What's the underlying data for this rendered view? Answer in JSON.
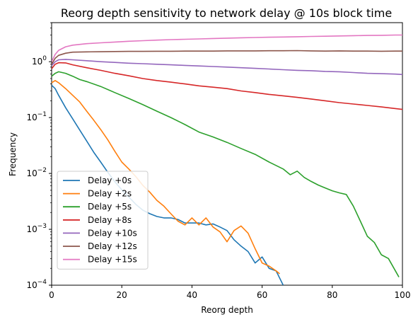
{
  "chart_data": {
    "type": "line",
    "title": "Reorg depth sensitivity to network delay @ 10s block time",
    "xlabel": "Reorg depth",
    "ylabel": "Frequency",
    "xlim": [
      0,
      100
    ],
    "ylim": [
      0.0001,
      5
    ],
    "yscale": "log",
    "grid": false,
    "legend_position": "lower-left",
    "x_ticks": [
      0,
      20,
      40,
      60,
      80,
      100
    ],
    "x_tick_labels": [
      "0",
      "20",
      "40",
      "60",
      "80",
      "100"
    ],
    "y_ticks": [
      0.0001,
      0.001,
      0.01,
      0.1,
      1
    ],
    "y_tick_labels": [
      {
        "base": "10",
        "exp": "−4"
      },
      {
        "base": "10",
        "exp": "−3"
      },
      {
        "base": "10",
        "exp": "−2"
      },
      {
        "base": "10",
        "exp": "−1"
      },
      {
        "base": "10",
        "exp": "0"
      }
    ],
    "series": [
      {
        "name": "Delay +0s",
        "color": "#1f77b4",
        "x": [
          0,
          1,
          2,
          4,
          6,
          8,
          10,
          12,
          14,
          16,
          18,
          20,
          22,
          24,
          26,
          28,
          30,
          32,
          34,
          36,
          38,
          40,
          42,
          44,
          46,
          48,
          50,
          52,
          54,
          56,
          58,
          60,
          62,
          64,
          66
        ],
        "y": [
          0.38,
          0.33,
          0.25,
          0.15,
          0.095,
          0.06,
          0.038,
          0.024,
          0.016,
          0.0105,
          0.0071,
          0.0051,
          0.0038,
          0.0028,
          0.0022,
          0.0019,
          0.0017,
          0.0016,
          0.0016,
          0.0015,
          0.0013,
          0.0013,
          0.0013,
          0.0012,
          0.00125,
          0.0011,
          0.00095,
          0.00065,
          0.0005,
          0.0004,
          0.00025,
          0.00032,
          0.0002,
          0.00018,
          0.0001
        ]
      },
      {
        "name": "Delay +2s",
        "color": "#ff7f0e",
        "x": [
          0,
          1,
          2,
          4,
          6,
          8,
          10,
          12,
          14,
          16,
          18,
          20,
          22,
          24,
          26,
          28,
          30,
          32,
          34,
          36,
          38,
          40,
          42,
          44,
          46,
          48,
          50,
          52,
          54,
          56,
          58,
          60,
          62,
          64,
          65
        ],
        "y": [
          0.42,
          0.46,
          0.42,
          0.33,
          0.25,
          0.19,
          0.13,
          0.09,
          0.061,
          0.04,
          0.025,
          0.016,
          0.012,
          0.0088,
          0.0061,
          0.0046,
          0.0033,
          0.0026,
          0.0019,
          0.0014,
          0.0012,
          0.0016,
          0.0012,
          0.0016,
          0.0011,
          0.0009,
          0.0006,
          0.00095,
          0.00115,
          0.00085,
          0.00045,
          0.00025,
          0.00022,
          0.00018,
          0.00016
        ]
      },
      {
        "name": "Delay +5s",
        "color": "#2ca02c",
        "x": [
          0,
          1,
          2,
          4,
          6,
          8,
          10,
          14,
          18,
          22,
          26,
          30,
          34,
          38,
          42,
          46,
          50,
          54,
          58,
          62,
          66,
          68,
          70,
          72,
          74,
          76,
          78,
          80,
          82,
          84,
          86,
          88,
          90,
          92,
          94,
          96,
          98,
          99
        ],
        "y": [
          0.55,
          0.62,
          0.66,
          0.62,
          0.55,
          0.48,
          0.44,
          0.36,
          0.28,
          0.22,
          0.17,
          0.13,
          0.1,
          0.075,
          0.055,
          0.045,
          0.036,
          0.028,
          0.022,
          0.016,
          0.012,
          0.0095,
          0.011,
          0.0085,
          0.0072,
          0.0062,
          0.0055,
          0.0049,
          0.0045,
          0.0042,
          0.0026,
          0.0014,
          0.00075,
          0.00058,
          0.00035,
          0.0003,
          0.00018,
          0.00014
        ]
      },
      {
        "name": "Delay +8s",
        "color": "#d62728",
        "x": [
          0,
          1,
          2,
          4,
          6,
          10,
          14,
          18,
          22,
          26,
          30,
          34,
          38,
          42,
          46,
          50,
          54,
          58,
          62,
          66,
          70,
          74,
          78,
          82,
          86,
          90,
          94,
          98,
          100
        ],
        "y": [
          0.75,
          0.9,
          0.96,
          0.95,
          0.88,
          0.78,
          0.7,
          0.62,
          0.56,
          0.5,
          0.46,
          0.43,
          0.4,
          0.37,
          0.35,
          0.33,
          0.3,
          0.28,
          0.26,
          0.245,
          0.23,
          0.215,
          0.2,
          0.185,
          0.175,
          0.165,
          0.155,
          0.145,
          0.14
        ]
      },
      {
        "name": "Delay +10s",
        "color": "#9467bd",
        "x": [
          0,
          1,
          2,
          4,
          6,
          10,
          14,
          18,
          22,
          26,
          30,
          34,
          38,
          42,
          46,
          50,
          54,
          58,
          62,
          66,
          70,
          74,
          78,
          82,
          86,
          90,
          94,
          98,
          100
        ],
        "y": [
          0.85,
          1.0,
          1.08,
          1.1,
          1.08,
          1.04,
          1.0,
          0.97,
          0.94,
          0.92,
          0.9,
          0.88,
          0.86,
          0.84,
          0.82,
          0.8,
          0.78,
          0.76,
          0.74,
          0.72,
          0.7,
          0.69,
          0.67,
          0.66,
          0.64,
          0.62,
          0.61,
          0.6,
          0.59
        ]
      },
      {
        "name": "Delay +12s",
        "color": "#8c564b",
        "x": [
          0,
          1,
          2,
          4,
          6,
          10,
          14,
          18,
          22,
          26,
          30,
          34,
          38,
          42,
          46,
          50,
          54,
          58,
          62,
          66,
          70,
          74,
          78,
          82,
          86,
          90,
          94,
          98,
          100
        ],
        "y": [
          0.9,
          1.15,
          1.3,
          1.42,
          1.48,
          1.5,
          1.51,
          1.52,
          1.53,
          1.53,
          1.54,
          1.54,
          1.55,
          1.55,
          1.55,
          1.56,
          1.56,
          1.56,
          1.57,
          1.57,
          1.58,
          1.56,
          1.55,
          1.56,
          1.55,
          1.55,
          1.54,
          1.55,
          1.55
        ]
      },
      {
        "name": "Delay +15s",
        "color": "#e377c2",
        "x": [
          0,
          1,
          2,
          4,
          6,
          10,
          14,
          18,
          22,
          26,
          30,
          34,
          38,
          42,
          46,
          50,
          54,
          58,
          62,
          66,
          70,
          74,
          78,
          82,
          86,
          90,
          94,
          98,
          100
        ],
        "y": [
          1.0,
          1.35,
          1.6,
          1.85,
          1.98,
          2.1,
          2.18,
          2.25,
          2.32,
          2.38,
          2.43,
          2.48,
          2.52,
          2.56,
          2.6,
          2.64,
          2.68,
          2.71,
          2.74,
          2.77,
          2.8,
          2.83,
          2.86,
          2.89,
          2.92,
          2.95,
          2.97,
          3.0,
          3.0
        ]
      }
    ]
  }
}
